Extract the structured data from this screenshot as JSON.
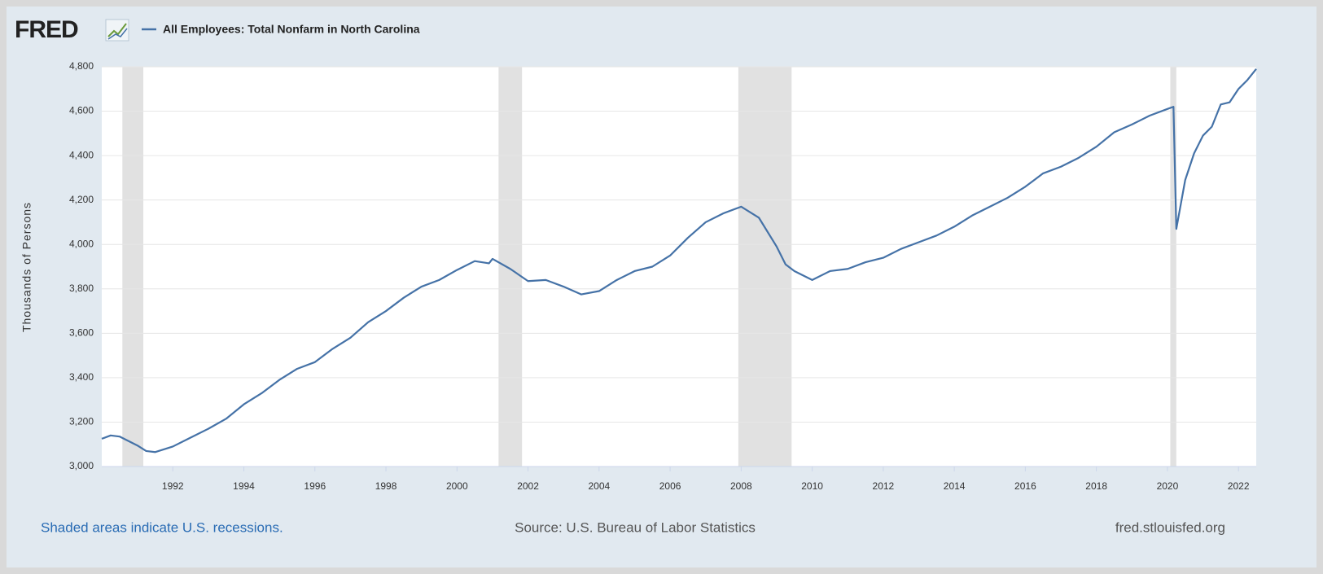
{
  "chart_data": {
    "type": "line",
    "logo": "FRED",
    "ylabel": "Thousands of Persons",
    "notes": [
      "Shaded areas indicate U.S. recessions.",
      "Source: U.S. Bureau of Labor Statistics",
      "fred.stlouisfed.org"
    ],
    "x": [
      1990.0,
      1990.25,
      1990.5,
      1990.75,
      1991.0,
      1991.25,
      1991.5,
      1992.0,
      1992.5,
      1993.0,
      1993.5,
      1994.0,
      1994.5,
      1995.0,
      1995.5,
      1996.0,
      1996.5,
      1997.0,
      1997.5,
      1998.0,
      1998.5,
      1999.0,
      1999.5,
      2000.0,
      2000.5,
      2000.9,
      2001.0,
      2001.5,
      2002.0,
      2002.5,
      2003.0,
      2003.5,
      2004.0,
      2004.5,
      2005.0,
      2005.5,
      2006.0,
      2006.5,
      2007.0,
      2007.5,
      2008.0,
      2008.5,
      2009.0,
      2009.25,
      2009.5,
      2010.0,
      2010.5,
      2011.0,
      2011.5,
      2012.0,
      2012.5,
      2013.0,
      2013.5,
      2014.0,
      2014.5,
      2015.0,
      2015.5,
      2016.0,
      2016.5,
      2017.0,
      2017.5,
      2018.0,
      2018.5,
      2019.0,
      2019.5,
      2020.0,
      2020.17,
      2020.25,
      2020.5,
      2020.75,
      2021.0,
      2021.25,
      2021.5,
      2021.75,
      2022.0,
      2022.25,
      2022.5
    ],
    "series": [
      {
        "name": "All Employees: Total Nonfarm in North Carolina",
        "color": "#4572a7",
        "values": [
          3125,
          3140,
          3135,
          3115,
          3095,
          3070,
          3065,
          3090,
          3130,
          3170,
          3215,
          3280,
          3330,
          3390,
          3440,
          3470,
          3530,
          3580,
          3650,
          3700,
          3760,
          3810,
          3840,
          3885,
          3925,
          3915,
          3935,
          3890,
          3835,
          3840,
          3810,
          3775,
          3790,
          3840,
          3880,
          3900,
          3950,
          4030,
          4100,
          4140,
          4170,
          4120,
          3990,
          3910,
          3880,
          3840,
          3880,
          3890,
          3920,
          3940,
          3980,
          4010,
          4040,
          4080,
          4130,
          4170,
          4210,
          4260,
          4320,
          4350,
          4390,
          4440,
          4505,
          4540,
          4580,
          4610,
          4620,
          4070,
          4290,
          4410,
          4490,
          4530,
          4630,
          4640,
          4700,
          4740,
          4790
        ]
      }
    ],
    "recessions": [
      [
        1990.58,
        1991.17
      ],
      [
        2001.17,
        2001.83
      ],
      [
        2007.92,
        2009.42
      ],
      [
        2020.08,
        2020.25
      ]
    ],
    "recession_color": "#e1e1e1",
    "xlim": [
      1990.0,
      2022.5
    ],
    "ylim": [
      3000,
      4800
    ],
    "xticks": [
      1992,
      1994,
      1996,
      1998,
      2000,
      2002,
      2004,
      2006,
      2008,
      2010,
      2012,
      2014,
      2016,
      2018,
      2020,
      2022
    ],
    "yticks": [
      {
        "value": 3000,
        "label": "3,000"
      },
      {
        "value": 3200,
        "label": "3,200"
      },
      {
        "value": 3400,
        "label": "3,400"
      },
      {
        "value": 3600,
        "label": "3,600"
      },
      {
        "value": 3800,
        "label": "3,800"
      },
      {
        "value": 4000,
        "label": "4,000"
      },
      {
        "value": 4200,
        "label": "4,200"
      },
      {
        "value": 4400,
        "label": "4,400"
      },
      {
        "value": 4600,
        "label": "4,600"
      },
      {
        "value": 4800,
        "label": "4,800"
      }
    ],
    "grid": true
  }
}
